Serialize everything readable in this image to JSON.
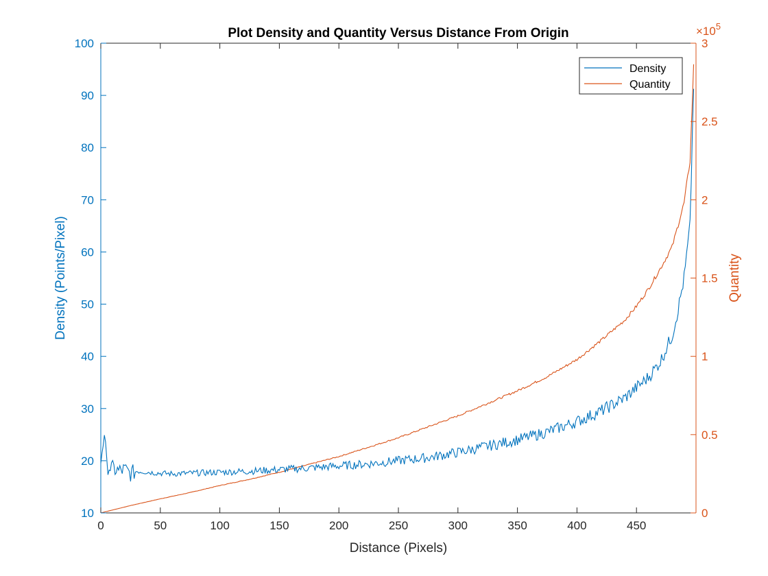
{
  "chart_data": {
    "type": "line",
    "title": "Plot Density and Quantity Versus Distance From Origin",
    "xlabel": "Distance (Pixels)",
    "ylabel_left": "Density (Points/Pixel)",
    "ylabel_right": "Quantity",
    "xlim": [
      0,
      500
    ],
    "ylim_left": [
      10,
      100
    ],
    "ylim_right": [
      0,
      300000
    ],
    "right_axis_exponent_prefix": "×10",
    "right_axis_exponent_power": "5",
    "x_ticks": [
      0,
      50,
      100,
      150,
      200,
      250,
      300,
      350,
      400,
      450
    ],
    "y_left_ticks": [
      10,
      20,
      30,
      40,
      50,
      60,
      70,
      80,
      90,
      100
    ],
    "y_right_ticks": [
      0,
      0.5,
      1,
      1.5,
      2,
      2.5,
      3
    ],
    "y_right_tick_labels": [
      "0",
      "0.5",
      "1",
      "1.5",
      "2",
      "2.5",
      "3"
    ],
    "grid": false,
    "legend_position": "top-right",
    "colors": {
      "left_axis": "#0072BD",
      "right_axis": "#D95319"
    },
    "series": [
      {
        "name": "Density",
        "axis": "left",
        "color": "#0072BD",
        "x": [
          0,
          3,
          5,
          10,
          15,
          20,
          25,
          30,
          40,
          50,
          60,
          75,
          100,
          125,
          150,
          175,
          200,
          225,
          250,
          275,
          300,
          325,
          350,
          375,
          400,
          420,
          440,
          450,
          460,
          470,
          480,
          485,
          490,
          495,
          498
        ],
        "y": [
          20,
          25.5,
          19,
          18.5,
          18,
          18.3,
          17.5,
          18,
          17.8,
          17.6,
          17.5,
          17.6,
          17.8,
          18,
          18.3,
          18.6,
          19,
          19.4,
          20,
          20.6,
          21.6,
          22.8,
          24,
          25.5,
          27.5,
          29.5,
          32,
          34,
          36,
          39,
          44,
          49,
          55,
          65,
          92
        ]
      },
      {
        "name": "Quantity",
        "axis": "right",
        "color": "#D95319",
        "x": [
          0,
          25,
          50,
          75,
          100,
          125,
          150,
          175,
          200,
          225,
          250,
          275,
          300,
          325,
          350,
          375,
          400,
          420,
          440,
          450,
          460,
          470,
          480,
          485,
          490,
          495,
          498
        ],
        "y": [
          0,
          4700,
          9000,
          13000,
          17500,
          21500,
          26000,
          31000,
          36000,
          42000,
          48000,
          55000,
          62000,
          70000,
          78000,
          87000,
          98000,
          110000,
          123000,
          132000,
          143000,
          156000,
          170000,
          184000,
          198000,
          225000,
          285000
        ]
      }
    ]
  }
}
